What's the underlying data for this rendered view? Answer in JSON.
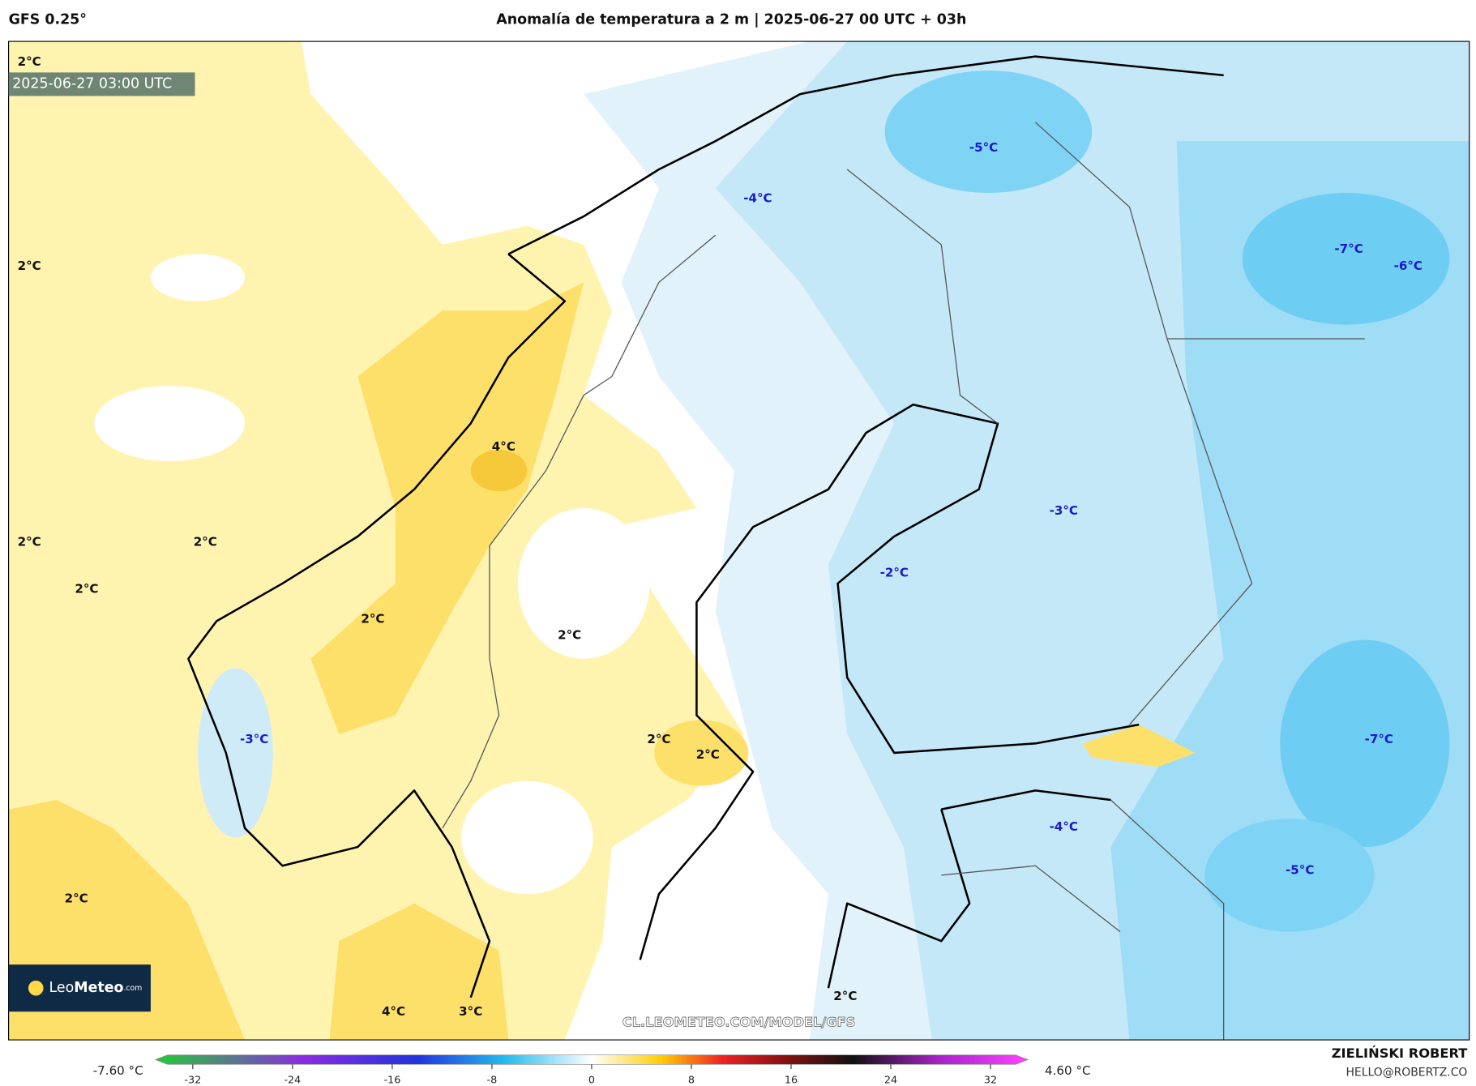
{
  "header": {
    "model": "GFS 0.25°",
    "title": "Anomalía de temperatura a 2 m | 2025-06-27 00 UTC + 03h"
  },
  "map": {
    "valid_time": "2025-06-27 03:00 UTC",
    "labels": [
      "2°C",
      "2°C",
      "2°C",
      "2°C",
      "2°C",
      "2°C",
      "2°C",
      "2°C",
      "2°C",
      "2°C",
      "2°C",
      "4°C",
      "-3°C",
      "4°C",
      "3°C",
      "-5°C",
      "-4°C",
      "-7°C",
      "-6°C",
      "-3°C",
      "-2°C",
      "-7°C",
      "-4°C",
      "-5°C"
    ],
    "watermark": "CL.LEOMETEO.COM/MODEL/GFS",
    "logo": [
      "Leo",
      "Meteo",
      ".com"
    ]
  },
  "colorbar": {
    "min_label": "-7.60 °C",
    "max_label": "4.60 °C",
    "lim": [
      -35,
      35
    ],
    "ticks": [
      -32,
      -24,
      -16,
      -8,
      0,
      8,
      16,
      24,
      32
    ]
  },
  "credits": {
    "author": "ZIELIŃSKI ROBERT",
    "email": "HELLO@ROBERTZ.CO"
  }
}
